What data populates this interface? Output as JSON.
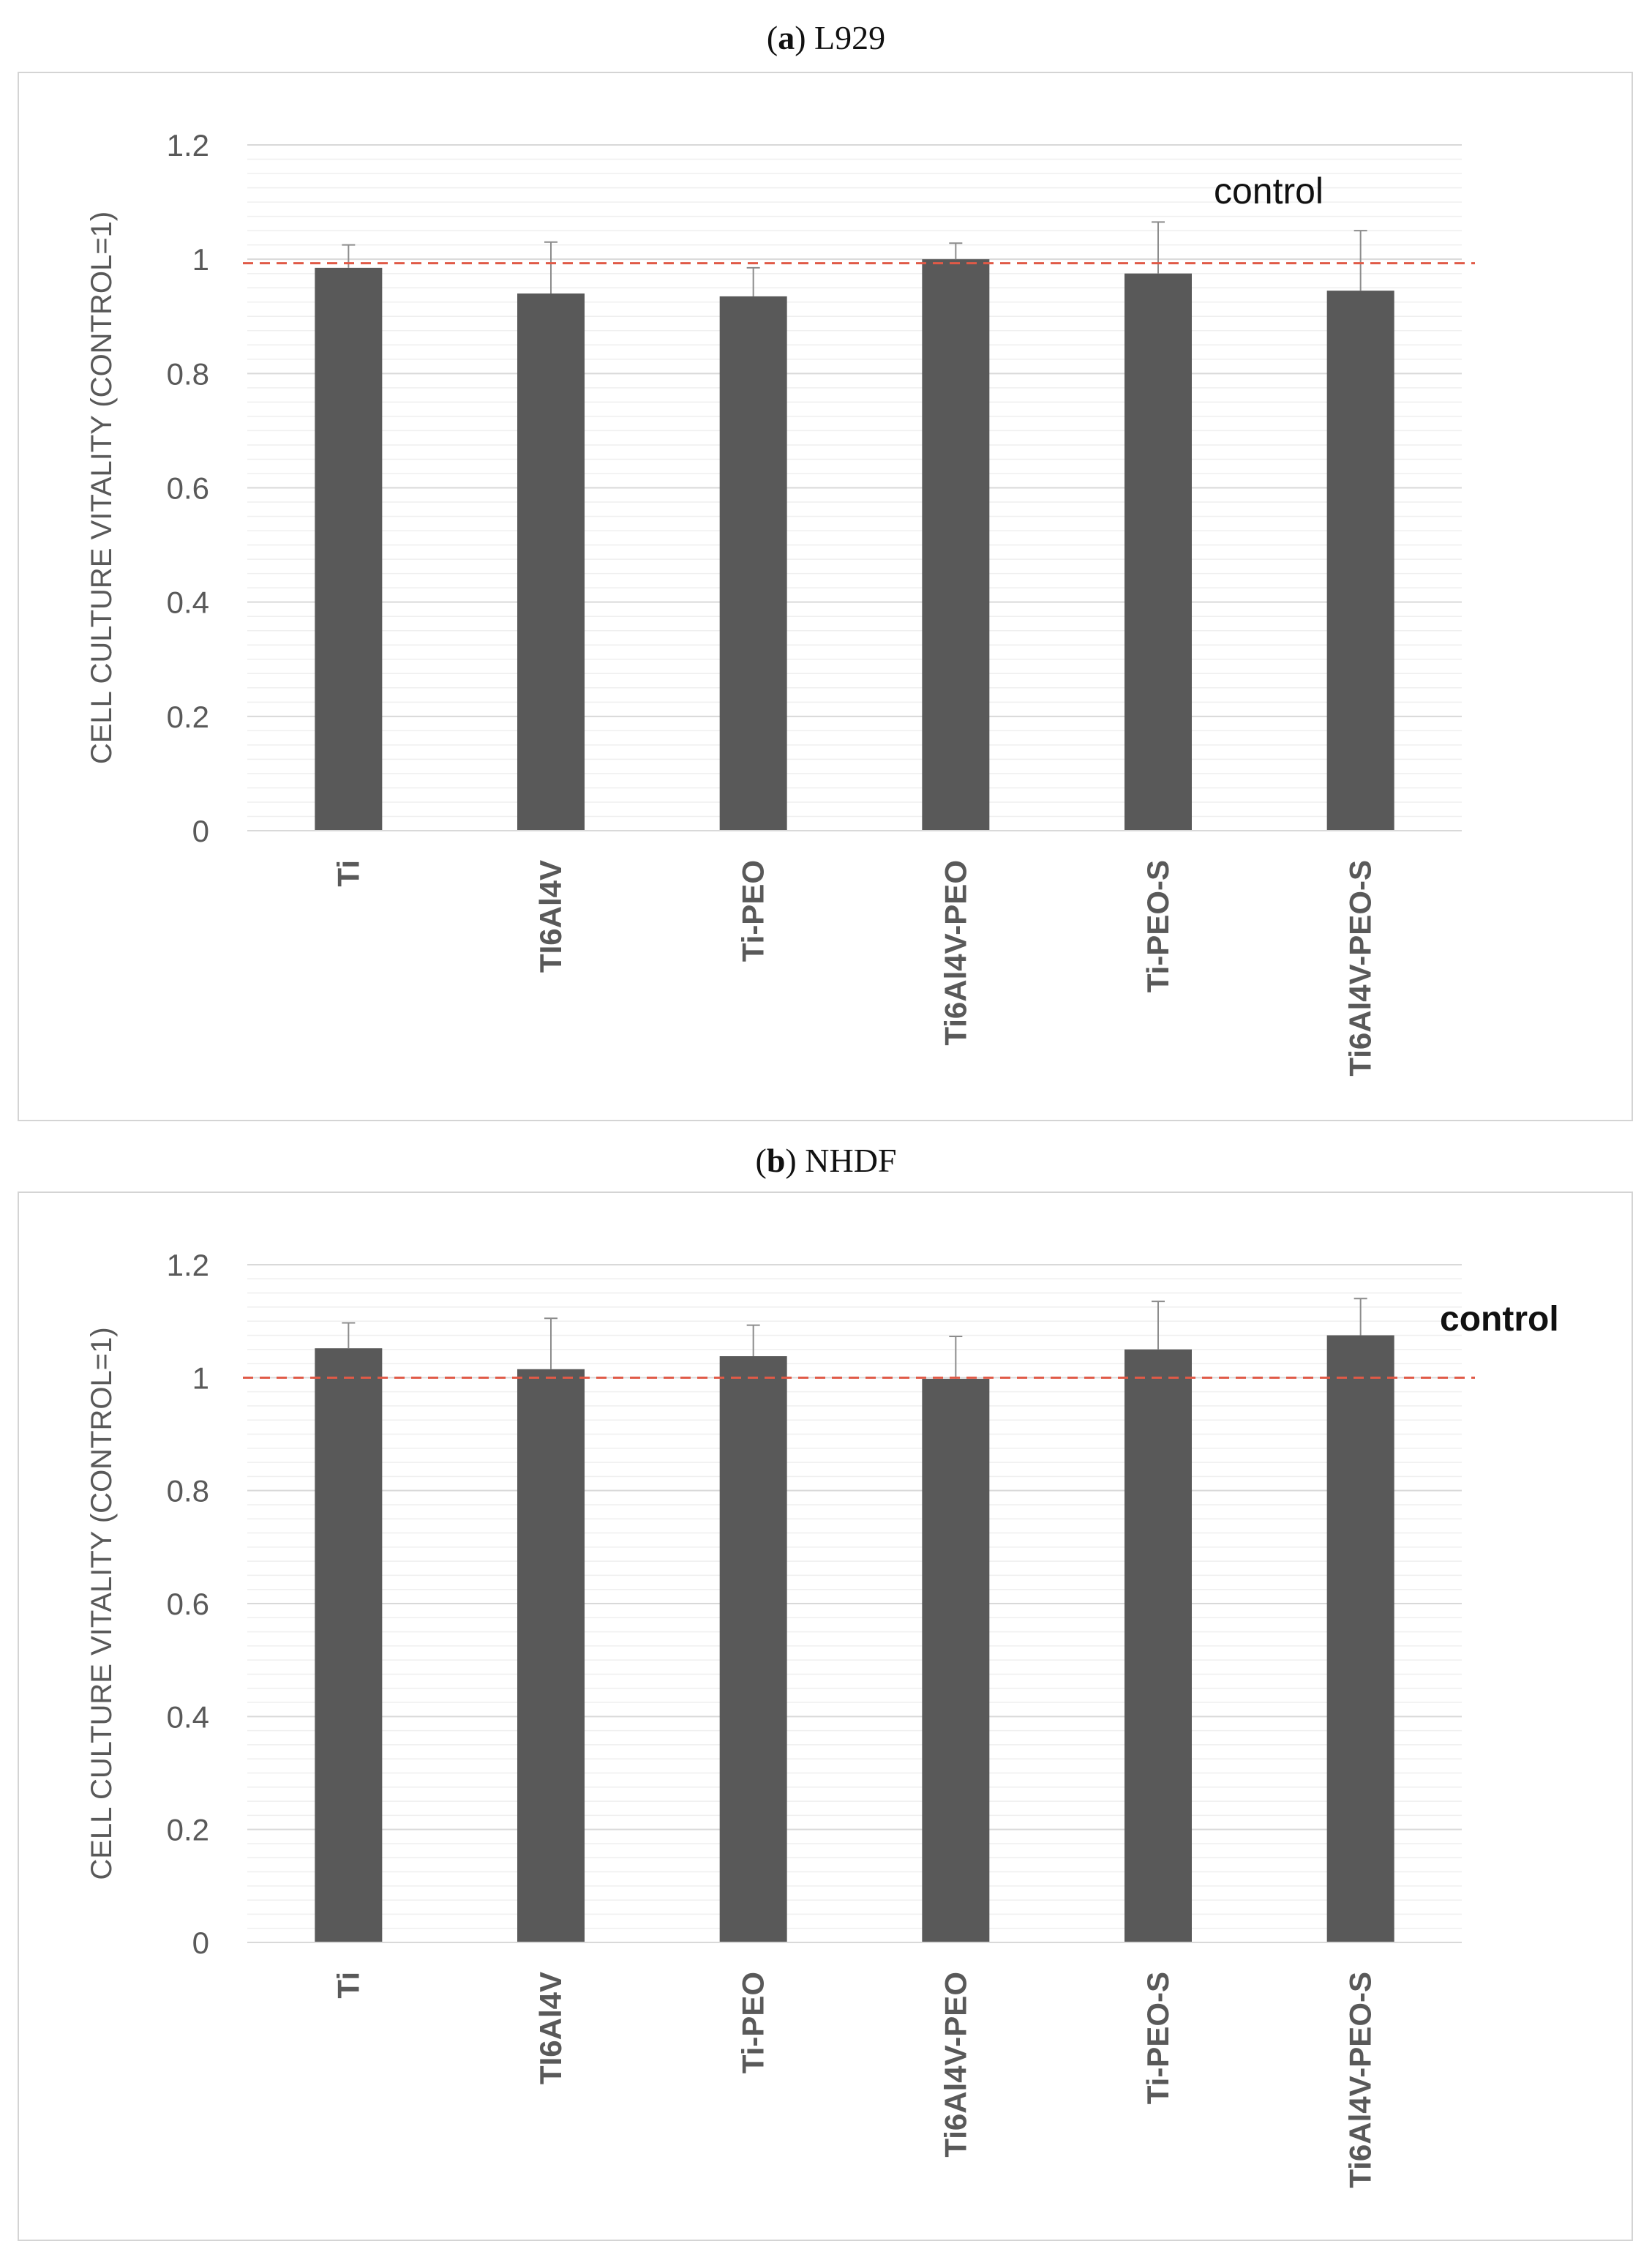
{
  "chart_data": [
    {
      "type": "bar",
      "panel_letter": "a",
      "panel_name": "L929",
      "categories": [
        "Ti",
        "TI6Al4V",
        "Ti-PEO",
        "Ti6Al4V-PEO",
        "Ti-PEO-S",
        "Ti6Al4V-PEO-S"
      ],
      "values": [
        0.985,
        0.94,
        0.935,
        1.0,
        0.975,
        0.945
      ],
      "error_plus": [
        0.04,
        0.09,
        0.05,
        0.028,
        0.09,
        0.105
      ],
      "ylabel": "CELL CULTURE VITALITY (CONTROL=1)",
      "ylim": [
        0,
        1.2
      ],
      "yticks": [
        0,
        0.2,
        0.4,
        0.6,
        0.8,
        1,
        1.2
      ],
      "ytick_labels": [
        "0",
        "0.2",
        "0.4",
        "0.6",
        "0.8",
        "1",
        "1.2"
      ],
      "reference_line": {
        "value": 0.993,
        "label": "control",
        "label_bold": false
      },
      "bar_color": "#595959",
      "reference_color": "#e05a47",
      "grid": true
    },
    {
      "type": "bar",
      "panel_letter": "b",
      "panel_name": "NHDF",
      "categories": [
        "Ti",
        "TI6Al4V",
        "Ti-PEO",
        "Ti6Al4V-PEO",
        "Ti-PEO-S",
        "Ti6Al4V-PEO-S"
      ],
      "values": [
        1.052,
        1.015,
        1.038,
        0.998,
        1.05,
        1.075
      ],
      "error_plus": [
        0.045,
        0.09,
        0.055,
        0.075,
        0.085,
        0.065
      ],
      "ylabel": "CELL CULTURE VITALITY (CONTROL=1)",
      "ylim": [
        0,
        1.2
      ],
      "yticks": [
        0,
        0.2,
        0.4,
        0.6,
        0.8,
        1,
        1.2
      ],
      "ytick_labels": [
        "0",
        "0.2",
        "0.4",
        "0.6",
        "0.8",
        "1",
        "1.2"
      ],
      "reference_line": {
        "value": 1.0,
        "label": "control",
        "label_bold": true
      },
      "bar_color": "#595959",
      "reference_color": "#e05a47",
      "grid": true
    }
  ]
}
